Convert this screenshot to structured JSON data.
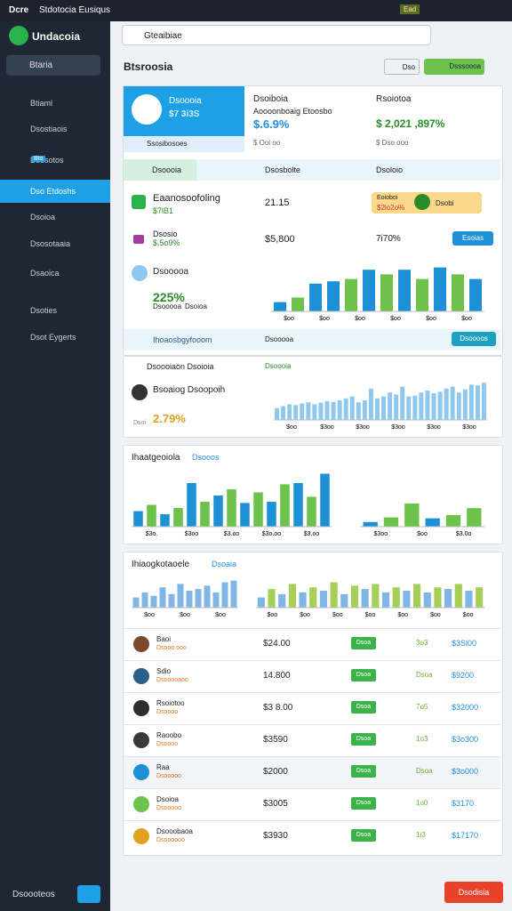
{
  "status": {
    "left": "Dcre",
    "title": "Stdotocia Eusiqus",
    "badge": "Ead"
  },
  "sidebar": {
    "brand": "Undacoia",
    "search": "Btaria",
    "nav": [
      "Btiaml",
      "Dsostiaois",
      "Dsosotos",
      "Dso Etdoshs",
      "Dsoioa",
      "Dsosotaaia",
      "Dsaoica",
      "Dsoties",
      "Dsot Eygerts"
    ],
    "badge": "Bto",
    "footer": "Dsoooteos"
  },
  "topbar": {
    "search": "Gteaibiae"
  },
  "header": {
    "title": "Btsroosia",
    "button1": "Dso",
    "button2": "Dsssoooa"
  },
  "summary": {
    "profile_name": "Dsoooia",
    "profile_value": "$7 3i3S",
    "profile_foot": "Ssosibosoes",
    "col2_title": "Dsoiboia",
    "col2_sub": "Aoooonboaig Etoosbo",
    "col2_value": "$.6.9%",
    "col2_foot": "$ Ooi oo",
    "col3_title": "Rsoiotoa",
    "col3_value": "$ 2,021 ,897%",
    "col3_foot": "$ Dso ooo"
  },
  "tabs": [
    "Dsoooia",
    "Dsosbolte",
    "Dsoloio"
  ],
  "row1": {
    "name": "Eaanosoofoling",
    "sub": "$7lB1",
    "value": "21.15",
    "pill": "Eoioboi",
    "pill_value": "$2lo2o%",
    "pill2": "Dsobi"
  },
  "row2": {
    "name": "Dsosio",
    "sub": "$.5o9%",
    "value": "$5,800",
    "pct": "7i70%",
    "button": "Esoias"
  },
  "bar_card": {
    "name": "Dsooooa",
    "value": "225%",
    "sub": "Dsooooa",
    "sub2": "Dsoioa",
    "footer": "Ihoaosbgyfooom",
    "footer_mid": "Dsooooa",
    "button": "Dsoooos"
  },
  "card2": {
    "title": "Dsoooiaon Dsoioia",
    "tag": "Dsoooia",
    "name": "Bsoaiog Dsoopoih",
    "value": "2.79%",
    "foot": "Dsoi"
  },
  "card3": {
    "title": "Ihaatgeoiola",
    "tag": "Dsooos"
  },
  "card4": {
    "title": "Ihiaogkotaoele",
    "tag": "Dsoaia"
  },
  "charts": [
    {
      "box": "c1",
      "values": [
        20,
        30,
        60,
        65,
        70,
        90,
        80,
        90,
        70,
        95,
        80,
        70
      ],
      "colors": [
        "#1e90d6",
        "#6cc24a",
        "#1e90d6",
        "#1e90d6",
        "#6cc24a",
        "#1e90d6",
        "#6cc24a",
        "#1e90d6",
        "#6cc24a",
        "#1e90d6",
        "#6cc24a",
        "#1e90d6"
      ],
      "labels": [
        "$oo",
        "$oo",
        "$oo",
        "$oo",
        "$oo",
        "$oo"
      ]
    },
    {
      "box": "c2",
      "values": [
        30,
        35,
        40,
        38,
        42,
        45,
        40,
        44,
        48,
        46,
        50,
        55,
        60,
        45,
        50,
        80,
        55,
        60,
        70,
        65,
        85,
        60,
        62,
        70,
        75,
        68,
        72,
        80,
        85,
        70,
        78,
        90,
        88,
        95
      ],
      "colors": [
        "#8ec8ee"
      ],
      "labels": [
        "$oo",
        "$3oo",
        "$3oo",
        "$3oo",
        "$3oo",
        "$3oo"
      ]
    },
    {
      "box": "c3",
      "values": [
        25,
        35,
        20,
        30,
        70,
        40,
        50,
        60,
        38,
        55,
        40,
        68,
        70,
        48,
        85
      ],
      "colors": [
        "#1e90d6",
        "#6cc24a"
      ],
      "labels": [
        "$3o.",
        "$3oo",
        "$3.oo",
        "$3o.oo",
        "$3.oo"
      ]
    },
    {
      "box": "c3b",
      "values": [
        10,
        20,
        50,
        18,
        25,
        40
      ],
      "colors": [
        "#1e90d6",
        "#6cc24a",
        "#6cc24a",
        "#1e90d6",
        "#6cc24a",
        "#6cc24a"
      ],
      "labels": [
        "$3oo",
        "$oo",
        "$3.0o"
      ]
    },
    {
      "box": "c4",
      "values": [
        30,
        45,
        35,
        60,
        40,
        70,
        50,
        55,
        65,
        45,
        75,
        80
      ],
      "colors": [
        "#7fb6e6"
      ],
      "labels": [
        "$oo",
        "$oo",
        "$oo"
      ]
    },
    {
      "box": "c4b",
      "values": [
        30,
        55,
        40,
        70,
        45,
        60,
        50,
        75,
        40,
        65,
        55,
        70,
        45,
        60,
        50,
        70,
        45,
        60,
        55,
        70,
        50,
        60
      ],
      "colors": [
        "#7fb6e6",
        "#a6cf5a"
      ],
      "labels": [
        "$oo",
        "$oo",
        "$oo",
        "$oo",
        "$oo",
        "$oo",
        "$oo"
      ]
    }
  ],
  "table": [
    {
      "name": "Baoi",
      "sub": "Dsooo ooo",
      "amount": "$24.00",
      "status": "Dsoa",
      "pct": "3o3",
      "value": "$3Sl00",
      "avatar": "#7a4a2a"
    },
    {
      "name": "Sdio",
      "sub": "Dsooooaoo",
      "amount": "14.800",
      "status": "Dsoa",
      "pct": "Dsoa",
      "value": "$9200",
      "avatar": "#2b5f8a"
    },
    {
      "name": "Rsoiotoo",
      "sub": "Dsoooo",
      "amount": "$3 8.00",
      "status": "Dsoa",
      "pct": "7o5",
      "value": "$32000",
      "avatar": "#2d2d2d"
    },
    {
      "name": "Raoobo",
      "sub": "Dsoooo",
      "amount": "$3590",
      "status": "Dsoa",
      "pct": "1o3",
      "value": "$3o300",
      "avatar": "#3a3a3a"
    },
    {
      "name": "Raa",
      "sub": "Dsooooo",
      "amount": "$2000",
      "status": "Dsoa",
      "pct": "Dsoa",
      "value": "$3o000",
      "avatar": "#1e90d6"
    },
    {
      "name": "Dsoioa",
      "sub": "Dsooooo",
      "amount": "$3005",
      "status": "Dsoa",
      "pct": "1o0",
      "value": "$3170",
      "avatar": "#6cc24a"
    },
    {
      "name": "Dsooobaoa",
      "sub": "Dsoooooo",
      "amount": "$3930",
      "status": "Dsoa",
      "pct": "1i3",
      "value": "$17170",
      "avatar": "#e0a020"
    }
  ],
  "footer_button": "Dsodisia"
}
